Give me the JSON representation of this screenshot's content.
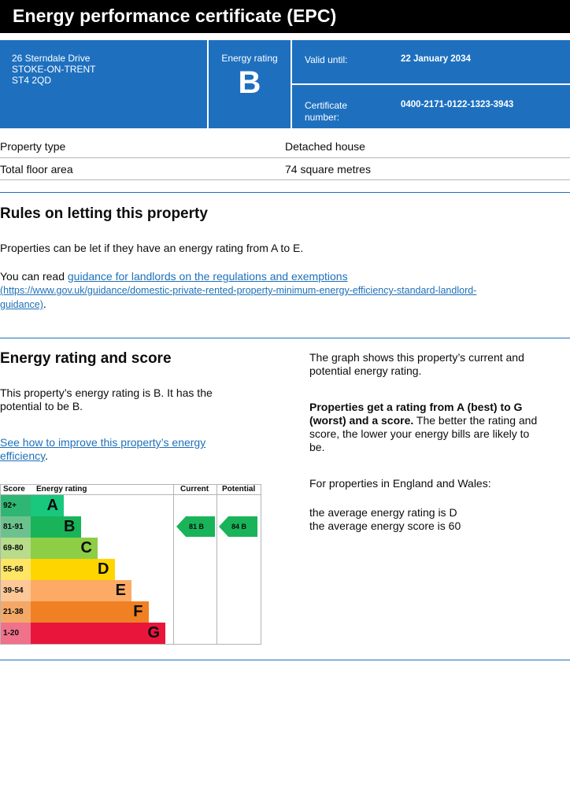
{
  "title": "Energy performance certificate (EPC)",
  "address": {
    "line1": "26 Sterndale Drive",
    "line2": "STOKE-ON-TRENT",
    "line3": "ST4 2QD"
  },
  "rating_box": {
    "label": "Energy rating",
    "value": "B"
  },
  "valid_until": {
    "label": "Valid until:",
    "value": "22 January 2034"
  },
  "certificate": {
    "label_line1": "Certificate",
    "label_line2": "number:",
    "value": "0400-2171-0122-1323-3943"
  },
  "property": [
    {
      "label": "Property type",
      "value": "Detached house"
    },
    {
      "label": "Total floor area",
      "value": "74 square metres"
    }
  ],
  "letting": {
    "heading": "Rules on letting this property",
    "para1": "Properties can be let if they have an energy rating from A to E.",
    "para2_prefix": "You can read ",
    "link_text": "guidance for landlords on the regulations and exemptions",
    "url_line1": "(https://www.gov.uk/guidance/domestic-private-rented-property-minimum-energy-efficiency-standard-landlord-",
    "url_line2": "guidance)",
    "suffix": "."
  },
  "energy": {
    "heading": "Energy rating and score",
    "para1_line1": "This property’s energy rating is B. It has the",
    "para1_line2": "potential to be B.",
    "link_line1": "See how to improve this property’s energy",
    "link_line2": "efficiency",
    "link_suffix": ".",
    "right_p1_line1": "The graph shows this property’s current and",
    "right_p1_line2": "potential energy rating.",
    "right_p2_bold1": "Properties get a rating from A (best) to G",
    "right_p2_bold2": "(worst) and a score.",
    "right_p2_rest1": " The better the rating and",
    "right_p2_rest2": "score, the lower your energy bills are likely to",
    "right_p2_rest3": "be.",
    "right_p3": "For properties in England and Wales:",
    "right_p4_line1": "the average energy rating is D",
    "right_p4_line2": "the average energy score is 60"
  },
  "chart_data": {
    "type": "table",
    "headers": {
      "score": "Score",
      "rating": "Energy rating",
      "current": "Current",
      "potential": "Potential"
    },
    "bands": [
      {
        "score": "92+",
        "letter": "A",
        "color": "#008054",
        "score_bg": "#19b459"
      },
      {
        "score": "81-91",
        "letter": "B",
        "color": "#19b459",
        "score_bg": "#19b459"
      },
      {
        "score": "69-80",
        "letter": "C",
        "color": "#8dce46",
        "score_bg": "#8dce46"
      },
      {
        "score": "55-68",
        "letter": "D",
        "color": "#ffd500",
        "score_bg": "#ffd500"
      },
      {
        "score": "39-54",
        "letter": "E",
        "color": "#fcaa65",
        "score_bg": "#fcaa65"
      },
      {
        "score": "21-38",
        "letter": "F",
        "color": "#ef8023",
        "score_bg": "#ef8023"
      },
      {
        "score": "1-20",
        "letter": "G",
        "color": "#e9153b",
        "score_bg": "#e9153b"
      }
    ],
    "current": {
      "score": 81,
      "letter": "B",
      "label": "81  B"
    },
    "potential": {
      "score": 84,
      "letter": "B",
      "label": "84  B"
    }
  },
  "colors": {
    "brand_blue": "#1e70bf",
    "link": "#1d70b8"
  }
}
